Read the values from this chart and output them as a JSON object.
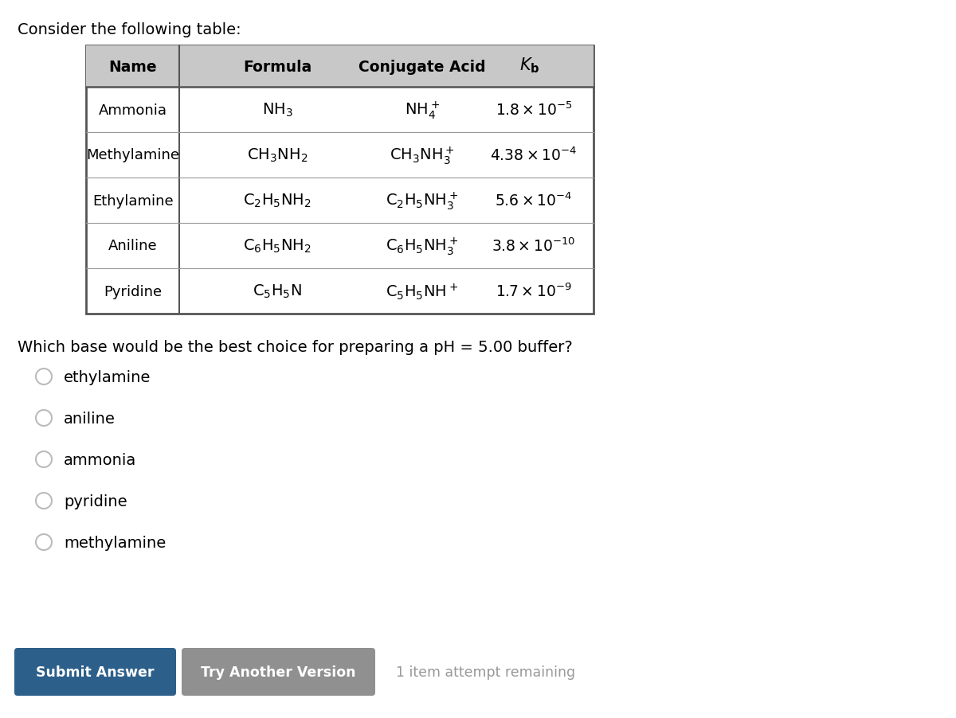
{
  "title": "Consider the following table:",
  "question": "Which base would be the best choice for preparing a pH = 5.00 buffer?",
  "bg_color": "#ffffff",
  "names": [
    "Ammonia",
    "Methylamine",
    "Ethylamine",
    "Aniline",
    "Pyridine"
  ],
  "formulas": [
    "$\\mathrm{NH_3}$",
    "$\\mathrm{CH_3NH_2}$",
    "$\\mathrm{C_2H_5NH_2}$",
    "$\\mathrm{C_6H_5NH_2}$",
    "$\\mathrm{C_5H_5N}$"
  ],
  "conj_acids": [
    "$\\mathrm{NH_4^+}$",
    "$\\mathrm{CH_3NH_3^+}$",
    "$\\mathrm{C_2H_5NH_3^+}$",
    "$\\mathrm{C_6H_5NH_3^+}$",
    "$\\mathrm{C_5H_5NH^+}$"
  ],
  "kb_values": [
    "$1.8 \\times 10^{-5}$",
    "$4.38 \\times 10^{-4}$",
    "$5.6 \\times 10^{-4}$",
    "$3.8 \\times 10^{-10}$",
    "$1.7 \\times 10^{-9}$"
  ],
  "choices": [
    "ethylamine",
    "aniline",
    "ammonia",
    "pyridine",
    "methylamine"
  ],
  "button_submit_color": "#2c5f8a",
  "button_try_color": "#909090",
  "button_submit_text": "Submit Answer",
  "button_try_text": "Try Another Version",
  "footer_text": "1 item attempt remaining",
  "header_bg": "#c8c8c8",
  "table_border_color": "#555555",
  "row_line_color": "#999999"
}
